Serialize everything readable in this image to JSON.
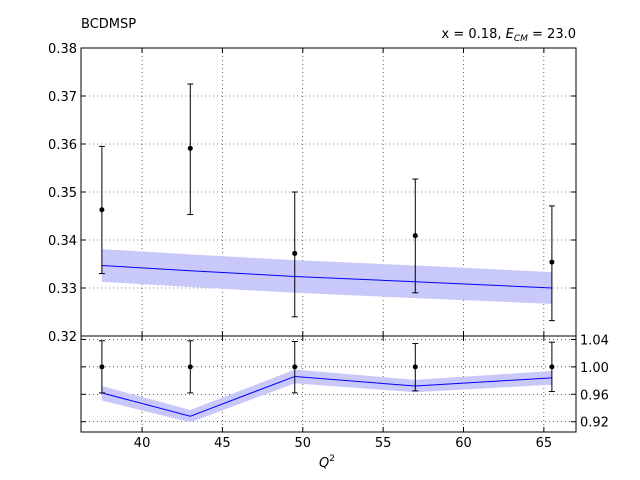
{
  "chart_data": {
    "type": "scatter",
    "title_left": "BCDMSP",
    "title_right_prefix": "x = 0.18, ",
    "title_right_sym_main": "E",
    "title_right_sym_sub": "CM",
    "title_right_suffix": " = 23.0",
    "xlabel_main": "Q",
    "xlabel_sup": "2",
    "xlim": [
      36.2,
      67.0
    ],
    "xticks": [
      40,
      45,
      50,
      55,
      60,
      65
    ],
    "xtick_labels": [
      "40",
      "45",
      "50",
      "55",
      "60",
      "65"
    ],
    "top_panel": {
      "ylim": [
        0.32,
        0.38
      ],
      "yticks": [
        0.32,
        0.33,
        0.34,
        0.35,
        0.36,
        0.37,
        0.38
      ],
      "ytick_labels": [
        "0.32",
        "0.33",
        "0.34",
        "0.35",
        "0.36",
        "0.37",
        "0.38"
      ],
      "grid": true,
      "data": {
        "x": [
          37.5,
          43.0,
          49.5,
          57.0,
          65.5
        ],
        "y": [
          0.3463,
          0.3591,
          0.3372,
          0.3409,
          0.3354
        ],
        "yerr_low": [
          0.333,
          0.3453,
          0.324,
          0.329,
          0.3232
        ],
        "yerr_high": [
          0.3595,
          0.3725,
          0.35,
          0.3527,
          0.3471
        ]
      },
      "theory": {
        "x": [
          37.5,
          43.0,
          49.5,
          57.0,
          65.5
        ],
        "y": [
          0.3347,
          0.3336,
          0.3324,
          0.3313,
          0.33
        ],
        "band_low": [
          0.3313,
          0.3302,
          0.329,
          0.3279,
          0.3267
        ],
        "band_high": [
          0.3381,
          0.337,
          0.3358,
          0.3347,
          0.3333
        ]
      }
    },
    "ratio_panel": {
      "ylim": [
        0.905,
        1.045
      ],
      "yticks": [
        0.92,
        0.96,
        1.0,
        1.04
      ],
      "ytick_labels": [
        "0.92",
        "0.96",
        "1.00",
        "1.04"
      ],
      "grid": true,
      "data": {
        "x": [
          37.5,
          43.0,
          49.5,
          57.0,
          65.5
        ],
        "y": [
          1.0,
          1.0,
          1.0,
          1.0,
          1.0
        ],
        "yerr_low": [
          0.962,
          0.962,
          0.962,
          0.965,
          0.964
        ],
        "yerr_high": [
          1.038,
          1.038,
          1.037,
          1.034,
          1.036
        ]
      },
      "theory": {
        "x": [
          37.5,
          43.0,
          49.5,
          57.0,
          65.5
        ],
        "y": [
          0.962,
          0.928,
          0.986,
          0.972,
          0.984
        ],
        "band_low": [
          0.951,
          0.919,
          0.976,
          0.963,
          0.974
        ],
        "band_high": [
          0.972,
          0.937,
          0.996,
          0.981,
          0.994
        ]
      }
    },
    "colors": {
      "data": "#000000",
      "theory_line": "#0000ff",
      "theory_band": "#c8c8fa"
    }
  }
}
